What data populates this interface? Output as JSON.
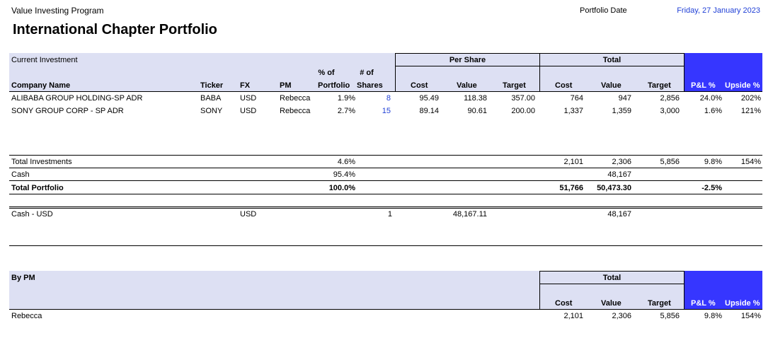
{
  "header": {
    "program": "Value Investing Program",
    "date_label": "Portfolio Date",
    "date_value": "Friday, 27 January 2023",
    "title": "International Chapter Portfolio"
  },
  "investments": {
    "section_label": "Current Investment",
    "group_per_share": "Per Share",
    "group_total": "Total",
    "columns": {
      "company": "Company Name",
      "ticker": "Ticker",
      "fx": "FX",
      "pm": "PM",
      "pct_top": "% of",
      "pct_bottom": "Portfolio",
      "shares_top": "# of",
      "shares_bottom": "Shares",
      "ps_cost": "Cost",
      "ps_value": "Value",
      "ps_target": "Target",
      "t_cost": "Cost",
      "t_value": "Value",
      "t_target": "Target",
      "pl": "P&L %",
      "upside": "Upside %"
    },
    "rows": [
      {
        "company": "ALIBABA GROUP HOLDING-SP ADR",
        "ticker": "BABA",
        "fx": "USD",
        "pm": "Rebecca",
        "pct": "1.9%",
        "shares": "8",
        "ps_cost": "95.49",
        "ps_value": "118.38",
        "ps_target": "357.00",
        "t_cost": "764",
        "t_value": "947",
        "t_target": "2,856",
        "pl": "24.0%",
        "upside": "202%"
      },
      {
        "company": "SONY GROUP CORP - SP ADR",
        "ticker": "SONY",
        "fx": "USD",
        "pm": "Rebecca",
        "pct": "2.7%",
        "shares": "15",
        "ps_cost": "89.14",
        "ps_value": "90.61",
        "ps_target": "200.00",
        "t_cost": "1,337",
        "t_value": "1,359",
        "t_target": "3,000",
        "pl": "1.6%",
        "upside": "121%"
      }
    ]
  },
  "totals": {
    "investments": {
      "label": "Total Investments",
      "pct": "4.6%",
      "t_cost": "2,101",
      "t_value": "2,306",
      "t_target": "5,856",
      "pl": "9.8%",
      "upside": "154%"
    },
    "cash": {
      "label": "Cash",
      "pct": "95.4%",
      "t_value": "48,167"
    },
    "portfolio": {
      "label": "Total Portfolio",
      "pct": "100.0%",
      "t_cost": "51,766",
      "t_value": "50,473.30",
      "pl": "-2.5%"
    }
  },
  "cash_detail": {
    "label": "Cash - USD",
    "fx": "USD",
    "shares": "1",
    "ps_value": "48,167.11",
    "t_value": "48,167"
  },
  "by_pm": {
    "section_label": "By PM",
    "group_total": "Total",
    "columns": {
      "t_cost": "Cost",
      "t_value": "Value",
      "t_target": "Target",
      "pl": "P&L %",
      "upside": "Upside %"
    },
    "rows": [
      {
        "pm": "Rebecca",
        "t_cost": "2,101",
        "t_value": "2,306",
        "t_target": "5,856",
        "pl": "9.8%",
        "upside": "154%"
      }
    ]
  },
  "colors": {
    "header_bg": "#dde0f3",
    "accent_bg": "#3636ff",
    "link_blue": "#1f3fd6"
  }
}
